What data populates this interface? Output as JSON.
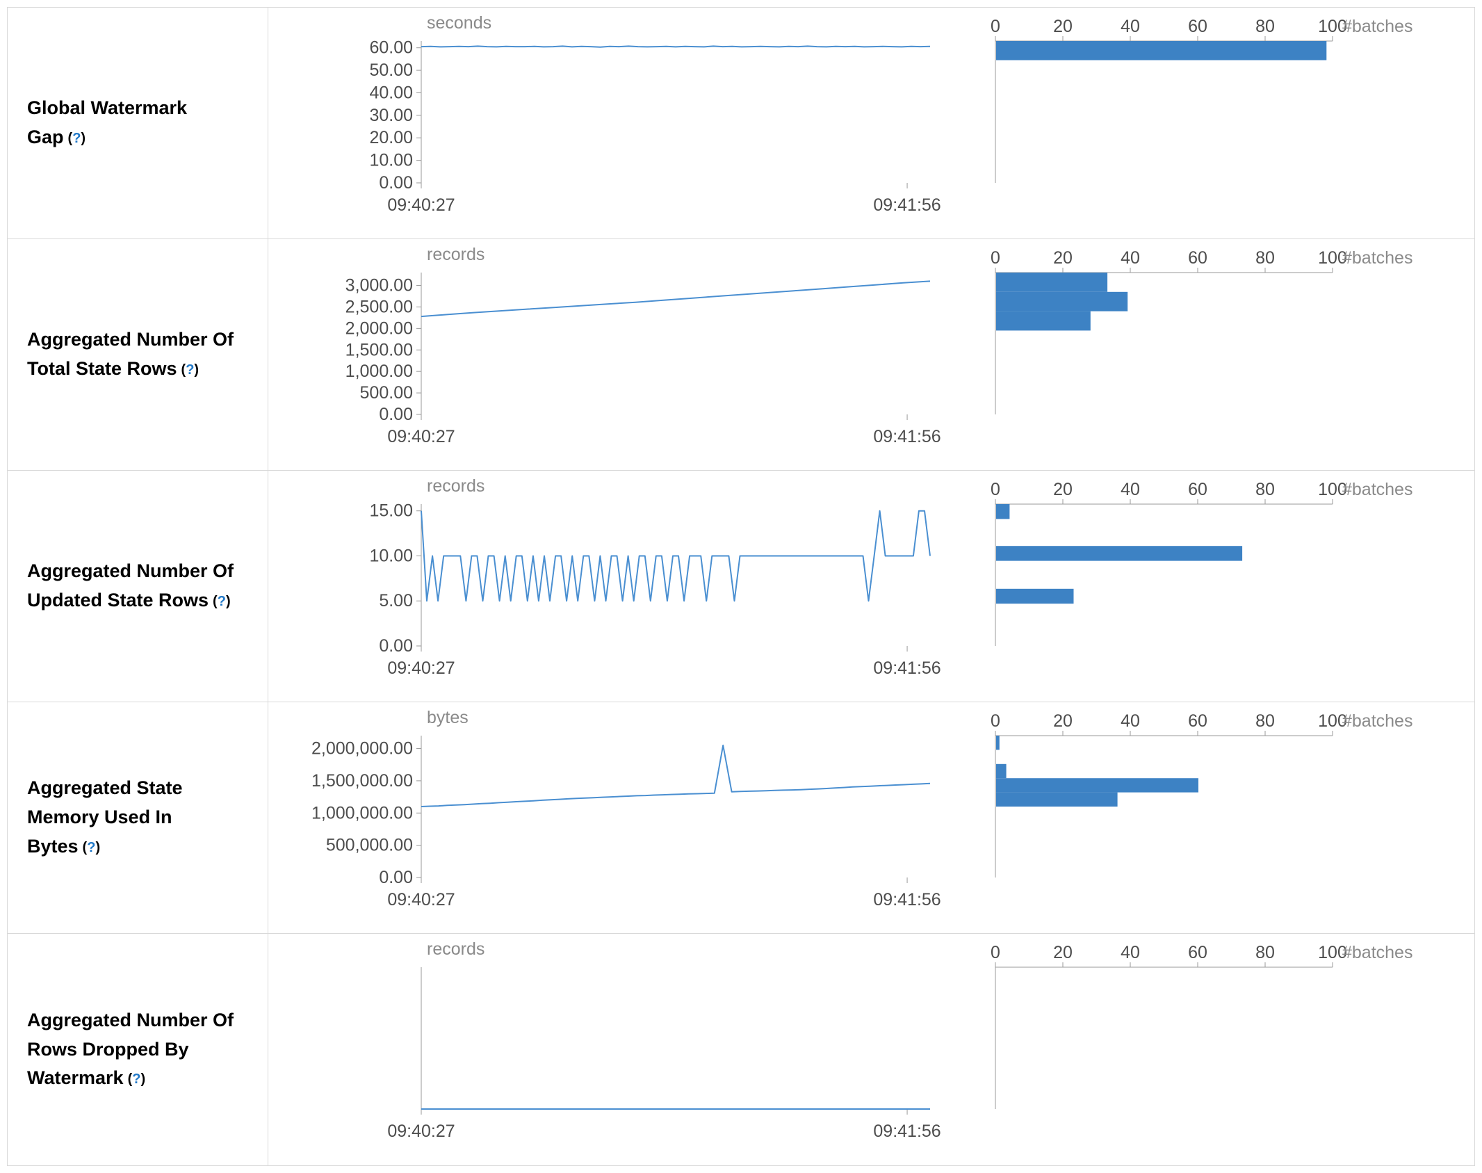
{
  "style": {
    "line_color": "#4a8fd1",
    "bar_color": "#3d82c4",
    "axis_color": "#999999",
    "tick_label_color": "#4d4d4d",
    "muted_label_color": "#8a8a8a",
    "help_color": "#2078c8",
    "border_color": "#d9d9d9",
    "label_color": "#000000"
  },
  "chart_data": [
    {
      "type": "line+histogram",
      "label": "Global Watermark Gap",
      "help": {
        "open": "(",
        "q": "?",
        "close": ")"
      },
      "timeline": {
        "type": "line",
        "unit": "seconds",
        "y_max": 63,
        "y_ticks": [
          {
            "v": 60,
            "t": "60.00"
          },
          {
            "v": 50,
            "t": "50.00"
          },
          {
            "v": 40,
            "t": "40.00"
          },
          {
            "v": 30,
            "t": "30.00"
          },
          {
            "v": 20,
            "t": "20.00"
          },
          {
            "v": 10,
            "t": "10.00"
          },
          {
            "v": 0,
            "t": "0.00"
          }
        ],
        "x_ticks": [
          "09:40:27",
          "09:41:56"
        ],
        "values": [
          60.5,
          60.6,
          60.4,
          60.5,
          60.6,
          60.5,
          60.7,
          60.5,
          60.4,
          60.6,
          60.5,
          60.5,
          60.6,
          60.4,
          60.5,
          60.7,
          60.4,
          60.6,
          60.5,
          60.3,
          60.6,
          60.5,
          60.7,
          60.5,
          60.4,
          60.5,
          60.6,
          60.4,
          60.6,
          60.5,
          60.4,
          60.7,
          60.5,
          60.6,
          60.4,
          60.5,
          60.6,
          60.5,
          60.4,
          60.6,
          60.5,
          60.7,
          60.5,
          60.4,
          60.6,
          60.5,
          60.6,
          60.4,
          60.5,
          60.6,
          60.5,
          60.4,
          60.6,
          60.5,
          60.6
        ]
      },
      "histogram": {
        "type": "bar",
        "x_label": "#batches",
        "x_max": 100,
        "x_ticks": [
          {
            "v": 0,
            "t": "0"
          },
          {
            "v": 20,
            "t": "20"
          },
          {
            "v": 40,
            "t": "40"
          },
          {
            "v": 60,
            "t": "60"
          },
          {
            "v": 80,
            "t": "80"
          },
          {
            "v": 100,
            "t": "100"
          }
        ],
        "bars": [
          {
            "lo": 54.5,
            "hi": 63,
            "count": 98
          }
        ]
      }
    },
    {
      "type": "line+histogram",
      "label": "Aggregated Number Of Total State Rows",
      "help": {
        "open": "(",
        "q": "?",
        "close": ")"
      },
      "timeline": {
        "type": "line",
        "unit": "records",
        "y_max": 3300,
        "y_ticks": [
          {
            "v": 3000,
            "t": "3,000.00"
          },
          {
            "v": 2500,
            "t": "2,500.00"
          },
          {
            "v": 2000,
            "t": "2,000.00"
          },
          {
            "v": 1500,
            "t": "1,500.00"
          },
          {
            "v": 1000,
            "t": "1,000.00"
          },
          {
            "v": 500,
            "t": "500.00"
          },
          {
            "v": 0,
            "t": "0.00"
          }
        ],
        "x_ticks": [
          "09:40:27",
          "09:41:56"
        ],
        "values": [
          2280,
          2325,
          2370,
          2410,
          2450,
          2490,
          2530,
          2570,
          2610,
          2655,
          2700,
          2745,
          2790,
          2835,
          2880,
          2925,
          2970,
          3015,
          3060,
          3100
        ]
      },
      "histogram": {
        "type": "bar",
        "x_label": "#batches",
        "x_max": 100,
        "x_ticks": [
          {
            "v": 0,
            "t": "0"
          },
          {
            "v": 20,
            "t": "20"
          },
          {
            "v": 40,
            "t": "40"
          },
          {
            "v": 60,
            "t": "60"
          },
          {
            "v": 80,
            "t": "80"
          },
          {
            "v": 100,
            "t": "100"
          }
        ],
        "bars": [
          {
            "lo": 2850,
            "hi": 3300,
            "count": 33
          },
          {
            "lo": 2400,
            "hi": 2850,
            "count": 39
          },
          {
            "lo": 1950,
            "hi": 2400,
            "count": 28
          }
        ]
      }
    },
    {
      "type": "line+histogram",
      "label": "Aggregated Number Of Updated State Rows",
      "help": {
        "open": "(",
        "q": "?",
        "close": ")"
      },
      "timeline": {
        "type": "line",
        "unit": "records",
        "y_max": 15.75,
        "y_ticks": [
          {
            "v": 15,
            "t": "15.00"
          },
          {
            "v": 10,
            "t": "10.00"
          },
          {
            "v": 5,
            "t": "5.00"
          },
          {
            "v": 0,
            "t": "0.00"
          }
        ],
        "x_ticks": [
          "09:40:27",
          "09:41:56"
        ],
        "values": [
          15,
          5,
          10,
          5,
          10,
          10,
          10,
          10,
          5,
          10,
          10,
          5,
          10,
          10,
          5,
          10,
          5,
          10,
          10,
          5,
          10,
          5,
          10,
          5,
          10,
          10,
          5,
          10,
          5,
          10,
          10,
          5,
          10,
          5,
          10,
          10,
          5,
          10,
          5,
          10,
          10,
          5,
          10,
          10,
          5,
          10,
          10,
          5,
          10,
          10,
          10,
          5,
          10,
          10,
          10,
          10,
          5,
          10,
          10,
          10,
          10,
          10,
          10,
          10,
          10,
          10,
          10,
          10,
          10,
          10,
          10,
          10,
          10,
          10,
          10,
          10,
          10,
          10,
          10,
          10,
          5,
          10,
          15,
          10,
          10,
          10,
          10,
          10,
          10,
          15,
          15,
          10
        ]
      },
      "histogram": {
        "type": "bar",
        "x_label": "#batches",
        "x_max": 100,
        "x_ticks": [
          {
            "v": 0,
            "t": "0"
          },
          {
            "v": 20,
            "t": "20"
          },
          {
            "v": 40,
            "t": "40"
          },
          {
            "v": 60,
            "t": "60"
          },
          {
            "v": 80,
            "t": "80"
          },
          {
            "v": 100,
            "t": "100"
          }
        ],
        "bars": [
          {
            "lo": 14.1,
            "hi": 15.75,
            "count": 4
          },
          {
            "lo": 9.45,
            "hi": 11.1,
            "count": 73
          },
          {
            "lo": 4.7,
            "hi": 6.35,
            "count": 23
          }
        ]
      }
    },
    {
      "type": "line+histogram",
      "label": "Aggregated State Memory Used In Bytes",
      "help": {
        "open": "(",
        "q": "?",
        "close": ")"
      },
      "timeline": {
        "type": "line",
        "unit": "bytes",
        "y_max": 2200000,
        "y_ticks": [
          {
            "v": 2000000,
            "t": "2,000,000.00"
          },
          {
            "v": 1500000,
            "t": "1,500,000.00"
          },
          {
            "v": 1000000,
            "t": "1,000,000.00"
          },
          {
            "v": 500000,
            "t": "500,000.00"
          },
          {
            "v": 0,
            "t": "0.00"
          }
        ],
        "x_ticks": [
          "09:40:27",
          "09:41:56"
        ],
        "values": [
          1100000,
          1105000,
          1110000,
          1118000,
          1125000,
          1130000,
          1138000,
          1145000,
          1152000,
          1160000,
          1168000,
          1175000,
          1182000,
          1190000,
          1198000,
          1205000,
          1212000,
          1220000,
          1226000,
          1232000,
          1238000,
          1244000,
          1250000,
          1256000,
          1262000,
          1268000,
          1272000,
          1278000,
          1282000,
          1288000,
          1292000,
          1296000,
          1300000,
          1304000,
          1308000,
          2050000,
          1330000,
          1334000,
          1338000,
          1342000,
          1346000,
          1350000,
          1354000,
          1358000,
          1362000,
          1368000,
          1374000,
          1380000,
          1388000,
          1396000,
          1404000,
          1410000,
          1416000,
          1422000,
          1428000,
          1434000,
          1440000,
          1446000,
          1452000,
          1458000
        ]
      },
      "histogram": {
        "type": "bar",
        "x_label": "#batches",
        "x_max": 100,
        "x_ticks": [
          {
            "v": 0,
            "t": "0"
          },
          {
            "v": 20,
            "t": "20"
          },
          {
            "v": 40,
            "t": "40"
          },
          {
            "v": 60,
            "t": "60"
          },
          {
            "v": 80,
            "t": "80"
          },
          {
            "v": 100,
            "t": "100"
          }
        ],
        "bars": [
          {
            "lo": 1980000,
            "hi": 2200000,
            "count": 1
          },
          {
            "lo": 1540000,
            "hi": 1760000,
            "count": 3
          },
          {
            "lo": 1320000,
            "hi": 1540000,
            "count": 60
          },
          {
            "lo": 1100000,
            "hi": 1320000,
            "count": 36
          }
        ]
      }
    },
    {
      "type": "line+histogram",
      "label": "Aggregated Number Of Rows Dropped By Watermark",
      "help": {
        "open": "(",
        "q": "?",
        "close": ")"
      },
      "timeline": {
        "type": "line",
        "unit": "records",
        "y_max": 1,
        "y_ticks": [],
        "x_ticks": [
          "09:40:27",
          "09:41:56"
        ],
        "values": [
          0,
          0,
          0,
          0,
          0,
          0,
          0,
          0,
          0,
          0
        ]
      },
      "histogram": {
        "type": "bar",
        "x_label": "#batches",
        "x_max": 100,
        "x_ticks": [
          {
            "v": 0,
            "t": "0"
          },
          {
            "v": 20,
            "t": "20"
          },
          {
            "v": 40,
            "t": "40"
          },
          {
            "v": 60,
            "t": "60"
          },
          {
            "v": 80,
            "t": "80"
          },
          {
            "v": 100,
            "t": "100"
          }
        ],
        "bars": []
      }
    }
  ]
}
